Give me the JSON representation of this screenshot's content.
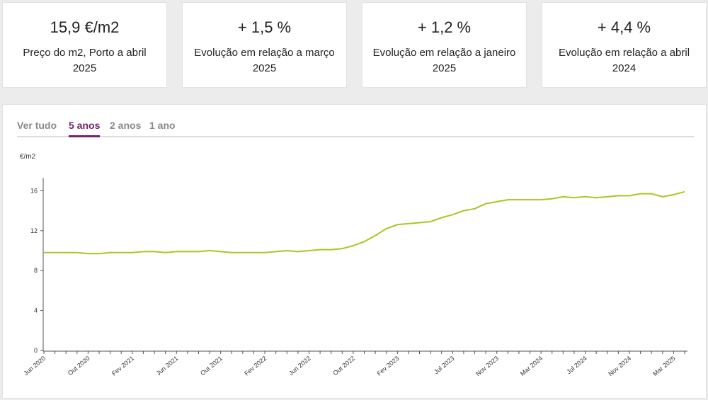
{
  "stats": [
    {
      "value": "15,9 €/m2",
      "label": "Preço do m2, Porto a abril 2025"
    },
    {
      "value": "+ 1,5 %",
      "label": "Evolução em relação a março 2025"
    },
    {
      "value": "+ 1,2 %",
      "label": "Evolução em relação a janeiro 2025"
    },
    {
      "value": "+ 4,4 %",
      "label": "Evolução em relação a abril 2024"
    }
  ],
  "tabs": [
    {
      "label": "Ver tudo",
      "active": false
    },
    {
      "label": "5 anos",
      "active": true
    },
    {
      "label": "2 anos",
      "active": false
    },
    {
      "label": "1 ano",
      "active": false
    }
  ],
  "colors": {
    "line": "#a8c81e",
    "accent": "#7a1f6e"
  },
  "chart_data": {
    "type": "line",
    "title": "",
    "xlabel": "",
    "ylabel": "€/m2",
    "ylim": [
      0,
      17
    ],
    "yticks": [
      0,
      4,
      8,
      12,
      16
    ],
    "x_tick_labels": [
      "Jun 2020",
      "Out 2020",
      "Fev 2021",
      "Jun 2021",
      "Out 2021",
      "Fev 2022",
      "Jun 2022",
      "Out 2022",
      "Fev 2023",
      "Jul 2023",
      "Nov 2023",
      "Mar 2024",
      "Jul 2024",
      "Nov 2024",
      "Mar 2025"
    ],
    "series": [
      {
        "name": "Preço do m2, Porto",
        "values": [
          9.8,
          9.8,
          9.8,
          9.8,
          9.7,
          9.7,
          9.8,
          9.8,
          9.8,
          9.9,
          9.9,
          9.8,
          9.9,
          9.9,
          9.9,
          10.0,
          9.9,
          9.8,
          9.8,
          9.8,
          9.8,
          9.9,
          10.0,
          9.9,
          10.0,
          10.1,
          10.1,
          10.2,
          10.5,
          10.9,
          11.5,
          12.2,
          12.6,
          12.7,
          12.8,
          12.9,
          13.3,
          13.6,
          14.0,
          14.2,
          14.7,
          14.9,
          15.1,
          15.1,
          15.1,
          15.1,
          15.2,
          15.4,
          15.3,
          15.4,
          15.3,
          15.4,
          15.5,
          15.5,
          15.7,
          15.7,
          15.4,
          15.6,
          15.9
        ]
      }
    ]
  }
}
